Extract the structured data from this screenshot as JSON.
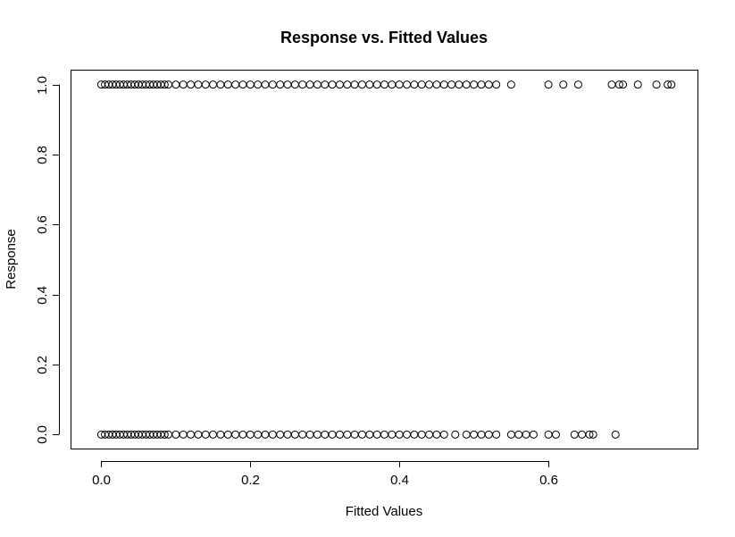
{
  "chart_data": {
    "type": "scatter",
    "title": "Response vs. Fitted Values",
    "xlabel": "Fitted Values",
    "ylabel": "Response",
    "xlim": [
      -0.04,
      0.8
    ],
    "ylim": [
      -0.04,
      1.04
    ],
    "x_ticks": [
      0.0,
      0.2,
      0.4,
      0.6
    ],
    "x_tick_labels": [
      "0.0",
      "0.2",
      "0.4",
      "0.6"
    ],
    "y_ticks": [
      0.0,
      0.2,
      0.4,
      0.6,
      0.8,
      1.0
    ],
    "y_tick_labels": [
      "0.0",
      "0.2",
      "0.4",
      "0.6",
      "0.8",
      "1.0"
    ],
    "grid": false,
    "marker": "open-circle",
    "point_color": "#000000",
    "series": [
      {
        "y": 1,
        "x": [
          0.0,
          0.005,
          0.01,
          0.015,
          0.02,
          0.025,
          0.03,
          0.035,
          0.04,
          0.045,
          0.05,
          0.055,
          0.06,
          0.065,
          0.07,
          0.075,
          0.08,
          0.085,
          0.09,
          0.1,
          0.11,
          0.12,
          0.13,
          0.14,
          0.15,
          0.16,
          0.17,
          0.18,
          0.19,
          0.2,
          0.21,
          0.22,
          0.23,
          0.24,
          0.25,
          0.26,
          0.27,
          0.28,
          0.29,
          0.3,
          0.31,
          0.32,
          0.33,
          0.34,
          0.35,
          0.36,
          0.37,
          0.38,
          0.39,
          0.4,
          0.41,
          0.42,
          0.43,
          0.44,
          0.45,
          0.46,
          0.47,
          0.48,
          0.49,
          0.5,
          0.51,
          0.52,
          0.53,
          0.55,
          0.6,
          0.62,
          0.64,
          0.685,
          0.695,
          0.7,
          0.72,
          0.745,
          0.76,
          0.765
        ]
      },
      {
        "y": 0,
        "x": [
          0.0,
          0.005,
          0.01,
          0.015,
          0.02,
          0.025,
          0.03,
          0.035,
          0.04,
          0.045,
          0.05,
          0.055,
          0.06,
          0.065,
          0.07,
          0.075,
          0.08,
          0.085,
          0.09,
          0.1,
          0.11,
          0.12,
          0.13,
          0.14,
          0.15,
          0.16,
          0.17,
          0.18,
          0.19,
          0.2,
          0.21,
          0.22,
          0.23,
          0.24,
          0.25,
          0.26,
          0.27,
          0.28,
          0.29,
          0.3,
          0.31,
          0.32,
          0.33,
          0.34,
          0.35,
          0.36,
          0.37,
          0.38,
          0.39,
          0.4,
          0.41,
          0.42,
          0.43,
          0.44,
          0.45,
          0.46,
          0.475,
          0.49,
          0.5,
          0.51,
          0.52,
          0.53,
          0.55,
          0.56,
          0.57,
          0.58,
          0.6,
          0.61,
          0.635,
          0.645,
          0.655,
          0.66,
          0.69
        ]
      }
    ]
  }
}
